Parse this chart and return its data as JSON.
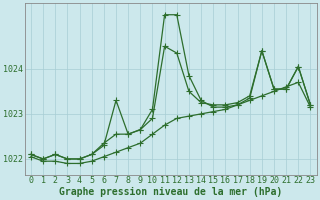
{
  "xlabel": "Graphe pression niveau de la mer (hPa)",
  "bg_color": "#cce8ec",
  "line_color": "#2d6e2d",
  "grid_color": "#a8cdd4",
  "xlim": [
    -0.5,
    23.5
  ],
  "ylim": [
    1021.65,
    1025.45
  ],
  "yticks": [
    1022,
    1023,
    1024
  ],
  "xticks": [
    0,
    1,
    2,
    3,
    4,
    5,
    6,
    7,
    8,
    9,
    10,
    11,
    12,
    13,
    14,
    15,
    16,
    17,
    18,
    19,
    20,
    21,
    22,
    23
  ],
  "series1_x": [
    0,
    1,
    2,
    3,
    4,
    5,
    6,
    7,
    8,
    9,
    10,
    11,
    12,
    13,
    14,
    15,
    16,
    17,
    18,
    19,
    20,
    21,
    22,
    23
  ],
  "series1_y": [
    1022.1,
    1022.0,
    1022.1,
    1022.0,
    1022.0,
    1022.1,
    1022.3,
    1023.3,
    1022.55,
    1022.65,
    1023.1,
    1025.2,
    1025.2,
    1023.85,
    1023.3,
    1023.15,
    1023.15,
    1023.2,
    1023.35,
    1024.4,
    1023.55,
    1023.55,
    1024.05,
    1023.2
  ],
  "series2_x": [
    0,
    1,
    2,
    3,
    4,
    5,
    6,
    7,
    8,
    9,
    10,
    11,
    12,
    13,
    14,
    15,
    16,
    17,
    18,
    19,
    20,
    21,
    22,
    23
  ],
  "series2_y": [
    1022.1,
    1022.0,
    1022.1,
    1022.0,
    1022.0,
    1022.1,
    1022.35,
    1022.55,
    1022.55,
    1022.65,
    1022.9,
    1024.5,
    1024.35,
    1023.5,
    1023.25,
    1023.2,
    1023.2,
    1023.25,
    1023.4,
    1024.4,
    1023.55,
    1023.55,
    1024.05,
    1023.2
  ],
  "series3_x": [
    0,
    1,
    2,
    3,
    4,
    5,
    6,
    7,
    8,
    9,
    10,
    11,
    12,
    13,
    14,
    15,
    16,
    17,
    18,
    19,
    20,
    21,
    22,
    23
  ],
  "series3_y": [
    1022.05,
    1021.95,
    1021.95,
    1021.9,
    1021.9,
    1021.95,
    1022.05,
    1022.15,
    1022.25,
    1022.35,
    1022.55,
    1022.75,
    1022.9,
    1022.95,
    1023.0,
    1023.05,
    1023.1,
    1023.2,
    1023.3,
    1023.4,
    1023.5,
    1023.6,
    1023.7,
    1023.15
  ],
  "marker": "P",
  "markersize": 3,
  "linewidth": 0.9,
  "xlabel_fontsize": 7,
  "tick_fontsize": 6,
  "xlabel_color": "#2d6e2d",
  "tick_color": "#2d6e2d",
  "axis_color": "#888888"
}
